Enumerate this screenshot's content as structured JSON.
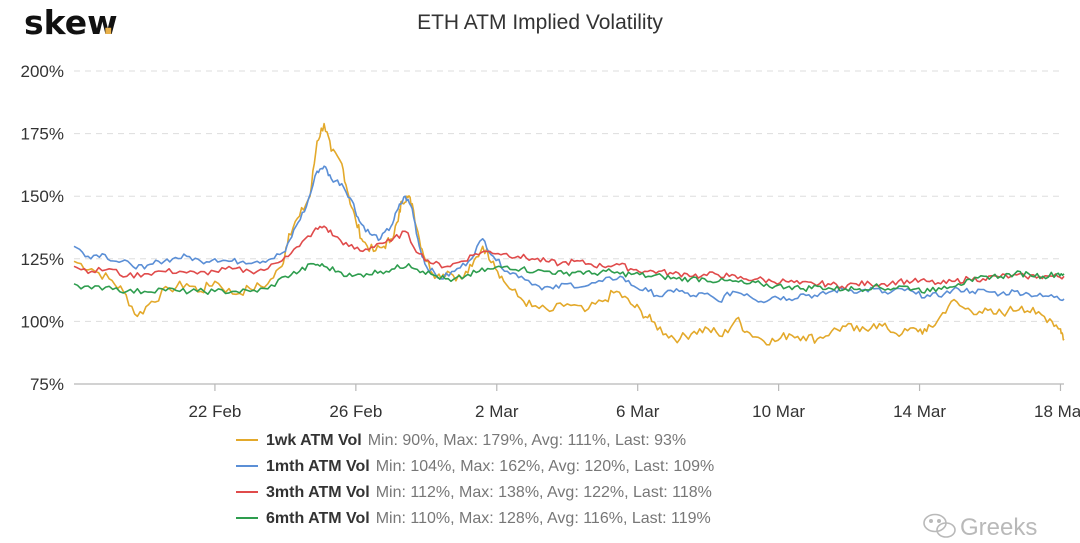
{
  "brand": {
    "logo_text": "skew",
    "logo_dot": ".",
    "watermark": "Greeks"
  },
  "chart_data": {
    "type": "line",
    "title": "ETH ATM Implied Volatility",
    "y_ticks": [
      "200%",
      "175%",
      "150%",
      "125%",
      "100%",
      "75%"
    ],
    "ylim": [
      75,
      200
    ],
    "x_ticks": [
      {
        "label": "22 Feb",
        "day": 22
      },
      {
        "label": "26 Feb",
        "day": 26
      },
      {
        "label": "2 Mar",
        "day": 30
      },
      {
        "label": "6 Mar",
        "day": 34
      },
      {
        "label": "10 Mar",
        "day": 38
      },
      {
        "label": "14 Mar",
        "day": 42
      },
      {
        "label": "18 Mar",
        "day": 46
      }
    ],
    "xlim": [
      18,
      46.1
    ],
    "grid": true,
    "legend_position": "bottom",
    "series": [
      {
        "name": "1wk ATM Vol",
        "stats": "Min: 90%, Max: 179%, Avg: 111%, Last: 93%",
        "color": "#e3a92b",
        "points": [
          [
            18,
            124
          ],
          [
            18.5,
            121
          ],
          [
            19,
            117
          ],
          [
            19.4,
            112
          ],
          [
            19.8,
            102
          ],
          [
            20.2,
            108
          ],
          [
            20.7,
            113
          ],
          [
            21.2,
            115
          ],
          [
            21.6,
            112
          ],
          [
            22,
            116
          ],
          [
            22.5,
            111
          ],
          [
            23,
            113
          ],
          [
            23.5,
            115
          ],
          [
            23.9,
            122
          ],
          [
            24.1,
            135
          ],
          [
            24.4,
            142
          ],
          [
            24.7,
            150
          ],
          [
            24.9,
            172
          ],
          [
            25.1,
            179
          ],
          [
            25.3,
            168
          ],
          [
            25.6,
            163
          ],
          [
            25.8,
            150
          ],
          [
            26.0,
            140
          ],
          [
            26.2,
            132
          ],
          [
            26.5,
            128
          ],
          [
            26.8,
            130
          ],
          [
            27.0,
            133
          ],
          [
            27.2,
            140
          ],
          [
            27.3,
            148
          ],
          [
            27.45,
            150
          ],
          [
            27.6,
            147
          ],
          [
            27.8,
            133
          ],
          [
            28.0,
            124
          ],
          [
            28.3,
            118
          ],
          [
            28.6,
            120
          ],
          [
            29.0,
            117
          ],
          [
            29.3,
            122
          ],
          [
            29.6,
            130
          ],
          [
            29.9,
            124
          ],
          [
            30.2,
            116
          ],
          [
            30.6,
            110
          ],
          [
            31.0,
            106
          ],
          [
            31.5,
            104
          ],
          [
            32.0,
            107
          ],
          [
            32.5,
            104
          ],
          [
            33.0,
            108
          ],
          [
            33.4,
            112
          ],
          [
            33.8,
            107
          ],
          [
            34.1,
            104
          ],
          [
            34.4,
            100
          ],
          [
            34.8,
            95
          ],
          [
            35.2,
            93
          ],
          [
            35.6,
            96
          ],
          [
            36.0,
            97
          ],
          [
            36.4,
            94
          ],
          [
            36.8,
            101
          ],
          [
            37.1,
            96
          ],
          [
            37.5,
            93
          ],
          [
            37.9,
            92
          ],
          [
            38.3,
            95
          ],
          [
            38.7,
            94
          ],
          [
            39.1,
            93
          ],
          [
            39.5,
            96
          ],
          [
            39.9,
            98
          ],
          [
            40.3,
            96
          ],
          [
            40.7,
            99
          ],
          [
            41.1,
            97
          ],
          [
            41.5,
            95
          ],
          [
            41.9,
            97
          ],
          [
            42.2,
            96
          ],
          [
            42.5,
            100
          ],
          [
            42.9,
            108
          ],
          [
            43.3,
            105
          ],
          [
            43.7,
            104
          ],
          [
            44.1,
            103
          ],
          [
            44.5,
            104
          ],
          [
            44.9,
            106
          ],
          [
            45.3,
            103
          ],
          [
            45.7,
            101
          ],
          [
            46.0,
            97
          ],
          [
            46.1,
            93
          ]
        ]
      },
      {
        "name": "1mth ATM Vol",
        "stats": "Min: 104%, Max: 162%, Avg: 120%, Last: 109%",
        "color": "#5b8fd6",
        "points": [
          [
            18,
            130
          ],
          [
            18.4,
            126
          ],
          [
            18.8,
            127
          ],
          [
            19.2,
            124
          ],
          [
            19.6,
            123
          ],
          [
            20,
            121
          ],
          [
            20.4,
            124
          ],
          [
            20.8,
            125
          ],
          [
            21.2,
            126
          ],
          [
            21.6,
            124
          ],
          [
            22,
            125
          ],
          [
            22.4,
            124
          ],
          [
            22.8,
            124
          ],
          [
            23.2,
            124
          ],
          [
            23.6,
            125
          ],
          [
            24.0,
            128
          ],
          [
            24.3,
            138
          ],
          [
            24.6,
            146
          ],
          [
            24.9,
            160
          ],
          [
            25.1,
            162
          ],
          [
            25.3,
            157
          ],
          [
            25.6,
            155
          ],
          [
            25.9,
            148
          ],
          [
            26.1,
            140
          ],
          [
            26.4,
            135
          ],
          [
            26.7,
            133
          ],
          [
            27.0,
            138
          ],
          [
            27.2,
            145
          ],
          [
            27.4,
            150
          ],
          [
            27.6,
            145
          ],
          [
            27.8,
            130
          ],
          [
            28.0,
            122
          ],
          [
            28.4,
            117
          ],
          [
            28.8,
            120
          ],
          [
            29.2,
            124
          ],
          [
            29.6,
            133
          ],
          [
            29.9,
            126
          ],
          [
            30.3,
            120
          ],
          [
            30.7,
            118
          ],
          [
            31.2,
            114
          ],
          [
            31.6,
            113
          ],
          [
            32.0,
            115
          ],
          [
            32.5,
            114
          ],
          [
            33.0,
            116
          ],
          [
            33.5,
            118
          ],
          [
            33.9,
            114
          ],
          [
            34.3,
            112
          ],
          [
            34.7,
            110
          ],
          [
            35.1,
            113
          ],
          [
            35.5,
            110
          ],
          [
            35.9,
            111
          ],
          [
            36.3,
            108
          ],
          [
            36.7,
            112
          ],
          [
            37.1,
            111
          ],
          [
            37.5,
            108
          ],
          [
            37.9,
            110
          ],
          [
            38.3,
            109
          ],
          [
            38.7,
            111
          ],
          [
            39.1,
            110
          ],
          [
            39.5,
            112
          ],
          [
            39.9,
            113
          ],
          [
            40.3,
            112
          ],
          [
            40.7,
            113
          ],
          [
            41.1,
            111
          ],
          [
            41.5,
            113
          ],
          [
            41.9,
            111
          ],
          [
            42.3,
            110
          ],
          [
            42.7,
            111
          ],
          [
            43.1,
            113
          ],
          [
            43.5,
            112
          ],
          [
            43.9,
            112
          ],
          [
            44.3,
            111
          ],
          [
            44.7,
            112
          ],
          [
            45.1,
            111
          ],
          [
            45.5,
            110
          ],
          [
            45.9,
            110
          ],
          [
            46.1,
            109
          ]
        ]
      },
      {
        "name": "3mth ATM Vol",
        "stats": "Min: 112%, Max: 138%, Avg: 122%, Last: 118%",
        "color": "#e04b4b",
        "points": [
          [
            18,
            122
          ],
          [
            18.5,
            120
          ],
          [
            19,
            121
          ],
          [
            19.5,
            118
          ],
          [
            20,
            119
          ],
          [
            20.5,
            120
          ],
          [
            21,
            120
          ],
          [
            21.5,
            119
          ],
          [
            22,
            120
          ],
          [
            22.5,
            121
          ],
          [
            23,
            120
          ],
          [
            23.5,
            121
          ],
          [
            24,
            126
          ],
          [
            24.4,
            130
          ],
          [
            24.8,
            136
          ],
          [
            25.1,
            138
          ],
          [
            25.4,
            134
          ],
          [
            25.8,
            130
          ],
          [
            26.2,
            128
          ],
          [
            26.6,
            131
          ],
          [
            27.0,
            132
          ],
          [
            27.4,
            136
          ],
          [
            27.8,
            127
          ],
          [
            28.2,
            123
          ],
          [
            28.6,
            122
          ],
          [
            29.0,
            124
          ],
          [
            29.4,
            127
          ],
          [
            29.8,
            128
          ],
          [
            30.2,
            127
          ],
          [
            30.6,
            126
          ],
          [
            31.0,
            125
          ],
          [
            31.4,
            124
          ],
          [
            31.8,
            123
          ],
          [
            32.2,
            124
          ],
          [
            32.6,
            123
          ],
          [
            33.0,
            122
          ],
          [
            33.4,
            123
          ],
          [
            33.8,
            121
          ],
          [
            34.2,
            120
          ],
          [
            34.6,
            120
          ],
          [
            35.0,
            119
          ],
          [
            35.4,
            119
          ],
          [
            35.8,
            118
          ],
          [
            36.2,
            119
          ],
          [
            36.6,
            118
          ],
          [
            37.0,
            117
          ],
          [
            37.4,
            117
          ],
          [
            37.8,
            116
          ],
          [
            38.2,
            116
          ],
          [
            38.6,
            115
          ],
          [
            39.0,
            115
          ],
          [
            39.4,
            115
          ],
          [
            39.8,
            114
          ],
          [
            40.2,
            115
          ],
          [
            40.6,
            115
          ],
          [
            41.0,
            115
          ],
          [
            41.4,
            116
          ],
          [
            41.8,
            116
          ],
          [
            42.2,
            116
          ],
          [
            42.6,
            115
          ],
          [
            43.0,
            116
          ],
          [
            43.4,
            117
          ],
          [
            43.8,
            117
          ],
          [
            44.2,
            118
          ],
          [
            44.6,
            118
          ],
          [
            45.0,
            118
          ],
          [
            45.4,
            118
          ],
          [
            45.8,
            118
          ],
          [
            46.1,
            118
          ]
        ]
      },
      {
        "name": "6mth ATM Vol",
        "stats": "Min: 110%, Max: 128%, Avg: 116%, Last: 119%",
        "color": "#2e9d4e",
        "points": [
          [
            18,
            115
          ],
          [
            18.5,
            113
          ],
          [
            19,
            114
          ],
          [
            19.5,
            112
          ],
          [
            20,
            112
          ],
          [
            20.5,
            113
          ],
          [
            21,
            112
          ],
          [
            21.5,
            112
          ],
          [
            22,
            112
          ],
          [
            22.5,
            112
          ],
          [
            23,
            112
          ],
          [
            23.5,
            113
          ],
          [
            24,
            118
          ],
          [
            24.4,
            120
          ],
          [
            24.8,
            123
          ],
          [
            25.1,
            122
          ],
          [
            25.5,
            120
          ],
          [
            25.9,
            118
          ],
          [
            26.3,
            119
          ],
          [
            26.7,
            120
          ],
          [
            27.1,
            121
          ],
          [
            27.5,
            123
          ],
          [
            27.9,
            120
          ],
          [
            28.3,
            118
          ],
          [
            28.7,
            116
          ],
          [
            29.1,
            118
          ],
          [
            29.5,
            120
          ],
          [
            29.9,
            121
          ],
          [
            30.3,
            122
          ],
          [
            30.7,
            121
          ],
          [
            31.1,
            120
          ],
          [
            31.5,
            120
          ],
          [
            31.9,
            119
          ],
          [
            32.3,
            120
          ],
          [
            32.7,
            119
          ],
          [
            33.1,
            120
          ],
          [
            33.5,
            119
          ],
          [
            33.9,
            119
          ],
          [
            34.3,
            118
          ],
          [
            34.7,
            118
          ],
          [
            35.1,
            117
          ],
          [
            35.5,
            117
          ],
          [
            35.9,
            117
          ],
          [
            36.3,
            116
          ],
          [
            36.7,
            116
          ],
          [
            37.1,
            115
          ],
          [
            37.5,
            115
          ],
          [
            37.9,
            114
          ],
          [
            38.3,
            114
          ],
          [
            38.7,
            113
          ],
          [
            39.1,
            114
          ],
          [
            39.5,
            113
          ],
          [
            39.9,
            113
          ],
          [
            40.3,
            113
          ],
          [
            40.7,
            114
          ],
          [
            41.1,
            113
          ],
          [
            41.5,
            114
          ],
          [
            41.9,
            113
          ],
          [
            42.3,
            112
          ],
          [
            42.7,
            114
          ],
          [
            43.1,
            115
          ],
          [
            43.5,
            116
          ],
          [
            43.9,
            118
          ],
          [
            44.3,
            118
          ],
          [
            44.7,
            119
          ],
          [
            45.1,
            119
          ],
          [
            45.5,
            118
          ],
          [
            45.9,
            119
          ],
          [
            46.1,
            119
          ]
        ]
      }
    ]
  }
}
